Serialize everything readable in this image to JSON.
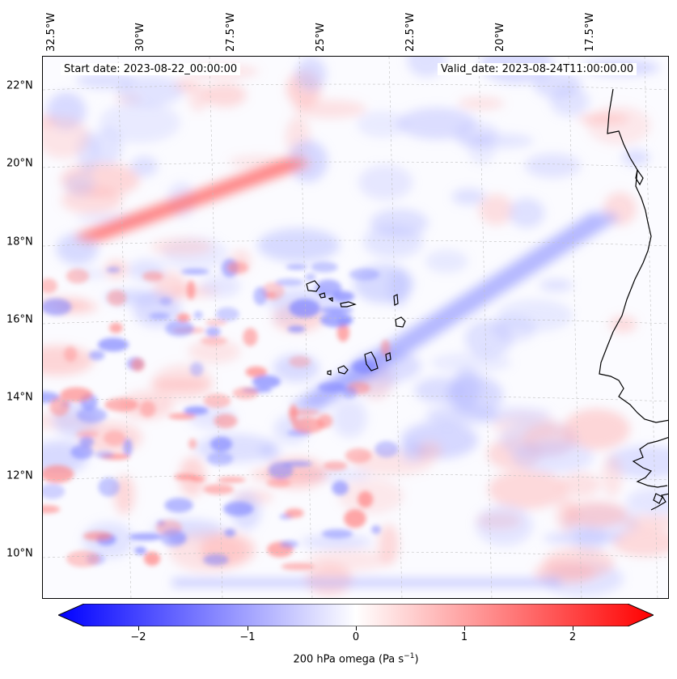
{
  "map": {
    "start_date": "Start date: 2023-08-22_00:00:00",
    "valid_date": "Valid_date: 2023-08-24T11:00:00.00",
    "lon_labels": [
      "32.5°W",
      "30°W",
      "27.5°W",
      "25°W",
      "22.5°W",
      "20°W",
      "17.5°W"
    ],
    "lat_labels": [
      "22°N",
      "20°N",
      "18°N",
      "16°N",
      "14°N",
      "12°N",
      "10°N"
    ],
    "features": [
      "Cape Verde islands outline",
      "West Africa coastline",
      "graticule gridlines"
    ],
    "field": "200 hPa omega anomaly filled contours (red positive, blue negative)"
  },
  "colorbar": {
    "tick_labels": [
      "−2",
      "−1",
      "0",
      "1",
      "2"
    ],
    "label_prefix": "200 hPa omega (Pa s",
    "label_sup": "−1",
    "label_suffix": ")",
    "min_color": "#0000ff",
    "mid_color": "#ffffff",
    "max_color": "#ff0000",
    "range": [
      -2.5,
      2.5
    ],
    "extend": "both"
  },
  "chart_data": {
    "type": "heatmap",
    "title": "",
    "colorbar_label": "200 hPa omega (Pa s−1)",
    "colorbar_ticks": [
      -2,
      -1,
      0,
      1,
      2
    ],
    "colorbar_range": [
      -2.5,
      2.5
    ],
    "colormap": "bwr",
    "x_ticks": [
      "32.5°W",
      "30°W",
      "27.5°W",
      "25°W",
      "22.5°W",
      "20°W",
      "17.5°W"
    ],
    "y_ticks": [
      "10°N",
      "12°N",
      "14°N",
      "16°N",
      "18°N",
      "20°N",
      "22°N"
    ],
    "lon_range": [
      -33,
      -15.5
    ],
    "lat_range": [
      9,
      22.5
    ]
  }
}
